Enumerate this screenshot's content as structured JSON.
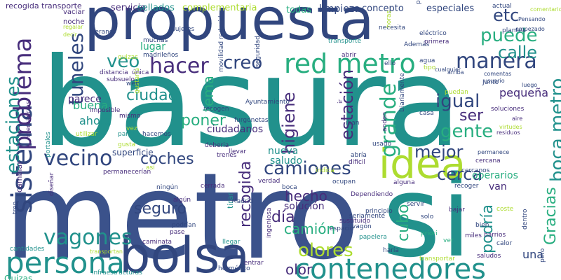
{
  "palette": {
    "dark_blue": "#3b528b",
    "navy": "#31467e",
    "teal": "#21918c",
    "sea_green": "#28ae80",
    "green": "#5ec962",
    "lime": "#addc30",
    "purple": "#472d7b",
    "deep_purple": "#440154"
  },
  "words": [
    "basura",
    "metro",
    "si",
    "propuesta",
    "bolsa",
    "contenedores",
    "persona",
    "idea",
    "sistema",
    "red metro",
    "vagones",
    "vecino",
    "hacer",
    "problema",
    "camiones",
    "estaciones",
    "tuneles",
    "puede",
    "manera",
    "boca metro",
    "grande",
    "estación",
    "igual",
    "mejor",
    "cerca",
    "recogida",
    "higiene",
    "gente",
    "olores",
    "coches",
    "seguro",
    "ciudad",
    "poner",
    "creo",
    "veo",
    "etc",
    "calle",
    "cubo",
    "ser",
    "Gracias",
    "podría",
    "camión",
    "hecho",
    "día",
    "olor",
    "pequeña",
    "tema",
    "ahora",
    "buena",
    "ciudadanos",
    "parece",
    "nueva",
    "solución",
    "saludo",
    "una",
    "operarios",
    "van",
    "lugar",
    "limpieza",
    "concepto",
    "especiales",
    "todas",
    "complementaria",
    "servicio",
    "sellados",
    "recogida transporte",
    "vaciar",
    "noche",
    "mujeres",
    "muchas",
    "madrileños",
    "movilidad reducida",
    "puntos limpios",
    "plantea",
    "actual",
    "comentario",
    "empezado",
    "Pensando",
    "necesita",
    "transporte",
    "horas",
    "primera",
    "eléctrico",
    "agua",
    "ello",
    "Además",
    "abrir",
    "tipo",
    "seguridad",
    "distancia",
    "subsuelo",
    "web",
    "quizas",
    "gustaría",
    "imposible",
    "mismo",
    "hacemos",
    "deberia",
    "trenes",
    "llevar",
    "principio",
    "vagón",
    "sustituido",
    "espacio",
    "papelera",
    "haría",
    "transportar",
    "saludos",
    "cualquier",
    "arriba",
    "comentas",
    "luego",
    "aire",
    "residuos",
    "virtudes",
    "permanece",
    "cercanos",
    "recoger",
    "servir",
    "bajar",
    "miles",
    "calor",
    "coste",
    "pero",
    "dentro",
    "cantidades",
    "transportan",
    "Quizas",
    "infraestructuras",
    "entrar",
    "hermético",
    "ingeniosa",
    "llegar",
    "caminata",
    "podrían",
    "pase",
    "algún",
    "ningún",
    "cerrada",
    "Madrid",
    "verdad",
    "tirar",
    "boca",
    "dificil",
    "ocupan",
    "Dependiendo",
    "seriamente",
    "solo",
    "alguna",
    "cercana",
    "Junto",
    "casa",
    "soluciones",
    "iban",
    "puedan",
    "Diariamente",
    "Ayuntamiento",
    "furgonetas",
    "recogen",
    "parte",
    "vez",
    "gusta",
    "superficie",
    "portales",
    "utilizar",
    "mercancías",
    "cambiar",
    "permanecerían",
    "así",
    "tren",
    "diseñar",
    "usado",
    "indica",
    "abría",
    "anden",
    "ir",
    "única",
    "verano",
    "regalar",
    "decir",
    "usuario",
    "ver",
    "priori",
    "barrios",
    "bien",
    "superficie"
  ]
}
